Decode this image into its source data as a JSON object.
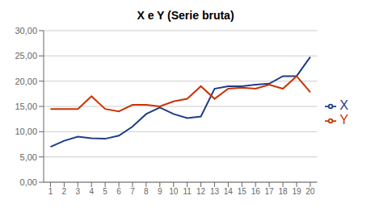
{
  "chart_data": {
    "type": "line",
    "title": "X e Y (Serie bruta)",
    "x": [
      1,
      2,
      3,
      4,
      5,
      6,
      7,
      8,
      9,
      10,
      11,
      12,
      13,
      14,
      15,
      16,
      17,
      18,
      19,
      20
    ],
    "series": [
      {
        "name": "X",
        "color": "#1f3c88",
        "values": [
          7.0,
          8.2,
          9.0,
          8.7,
          8.6,
          9.2,
          11.0,
          13.5,
          14.8,
          13.5,
          12.7,
          13.0,
          18.5,
          19.0,
          19.0,
          19.3,
          19.5,
          21.0,
          21.0,
          24.8
        ]
      },
      {
        "name": "Y",
        "color": "#cc3300",
        "values": [
          14.5,
          14.5,
          14.5,
          17.0,
          14.5,
          14.0,
          15.3,
          15.3,
          15.0,
          16.0,
          16.5,
          19.0,
          16.5,
          18.5,
          18.7,
          18.5,
          19.3,
          18.5,
          21.0,
          17.8
        ]
      }
    ],
    "xlim": [
      0.5,
      20.5
    ],
    "xticks": [
      1,
      2,
      3,
      4,
      5,
      6,
      7,
      8,
      9,
      10,
      11,
      12,
      13,
      14,
      15,
      16,
      17,
      18,
      19,
      20
    ],
    "ylim": [
      0,
      30
    ],
    "yticks": [
      {
        "value": 0,
        "label": "0,00"
      },
      {
        "value": 5,
        "label": "5,00"
      },
      {
        "value": 10,
        "label": "10,00"
      },
      {
        "value": 15,
        "label": "15,00"
      },
      {
        "value": 20,
        "label": "20,00"
      },
      {
        "value": 25,
        "label": "25,00"
      },
      {
        "value": 30,
        "label": "30,00"
      }
    ],
    "grid": "y",
    "legend": "right"
  }
}
